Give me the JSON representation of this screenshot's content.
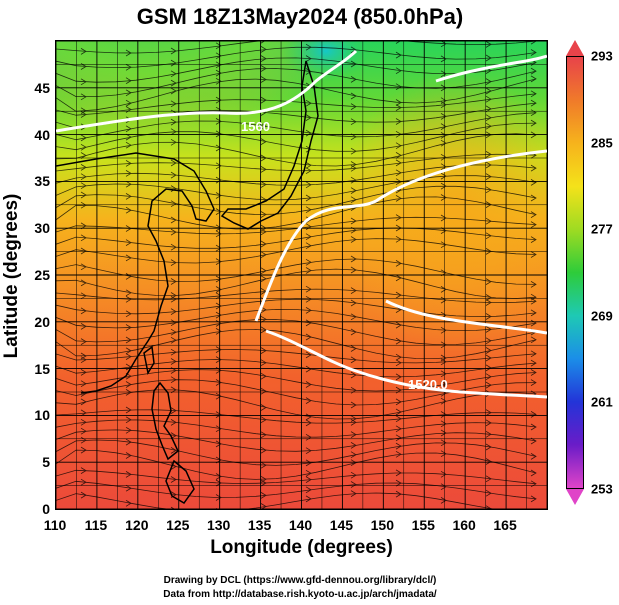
{
  "title": "GSM 18Z13May2024 (850.0hPa)",
  "xlabel": "Longitude (degrees)",
  "ylabel": "Latitude  (degrees)",
  "x_ticks": [
    "110",
    "115",
    "120",
    "125",
    "130",
    "135",
    "140",
    "145",
    "150",
    "155",
    "160",
    "165"
  ],
  "y_ticks": [
    "0",
    "5",
    "10",
    "15",
    "20",
    "25",
    "30",
    "35",
    "40",
    "45"
  ],
  "colorbar": {
    "labels": [
      "293",
      "285",
      "277",
      "269",
      "261",
      "253"
    ],
    "colors": [
      "#e8434a",
      "#f07a2a",
      "#f6b31c",
      "#f4e21a",
      "#9fdb22",
      "#2ecc3a",
      "#1ec9b4",
      "#1b8ee8",
      "#2334d8",
      "#6a1cc8",
      "#e044c8"
    ]
  },
  "contour_labels": [
    "1560",
    "1520.0"
  ],
  "credit": {
    "line1": "Drawing by DCL (https://www.gfd-dennou.org/library/dcl/)",
    "line2": "Data from http://database.rish.kyoto-u.ac.jp/arch/jmadata/"
  },
  "chart_data": {
    "type": "heatmap",
    "title": "GSM 18Z13May2024 (850.0hPa)",
    "xlabel": "Longitude (degrees)",
    "ylabel": "Latitude  (degrees)",
    "xlim": [
      110,
      170
    ],
    "ylim": [
      0,
      50
    ],
    "colorbar_range": [
      253,
      293
    ],
    "colorbar_ticks": [
      293,
      285,
      277,
      269,
      261,
      253
    ],
    "contour_labels": [
      "1560",
      "1520.0"
    ],
    "grid": true
  }
}
